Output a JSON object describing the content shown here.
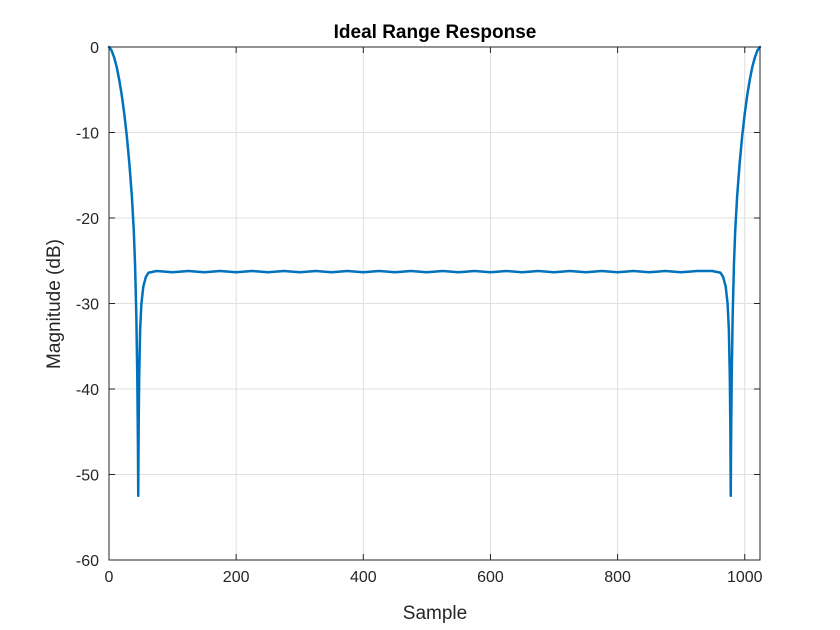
{
  "chart_data": {
    "type": "line",
    "title": "Ideal Range Response",
    "xlabel": "Sample",
    "ylabel": "Magnitude (dB)",
    "xlim": [
      0,
      1024
    ],
    "ylim": [
      -60,
      0
    ],
    "xticks": [
      0,
      200,
      400,
      600,
      800,
      1000
    ],
    "yticks": [
      0,
      -10,
      -20,
      -30,
      -40,
      -50,
      -60
    ],
    "grid": true,
    "series": [
      {
        "color": "#0072bd",
        "points": [
          [
            0,
            0
          ],
          [
            4,
            -0.4
          ],
          [
            8,
            -1.2
          ],
          [
            12,
            -2.3
          ],
          [
            16,
            -3.8
          ],
          [
            20,
            -5.6
          ],
          [
            24,
            -7.8
          ],
          [
            28,
            -10.4
          ],
          [
            32,
            -13.6
          ],
          [
            36,
            -17.5
          ],
          [
            39,
            -21.5
          ],
          [
            41,
            -25.5
          ],
          [
            43,
            -31.5
          ],
          [
            44.5,
            -38.5
          ],
          [
            45.5,
            -46.5
          ],
          [
            46,
            -52.5
          ],
          [
            46.7,
            -44
          ],
          [
            47.5,
            -38.5
          ],
          [
            49,
            -33
          ],
          [
            51,
            -30
          ],
          [
            54,
            -28
          ],
          [
            58,
            -26.9
          ],
          [
            62,
            -26.4
          ],
          [
            75,
            -26.2
          ],
          [
            100,
            -26.35
          ],
          [
            125,
            -26.2
          ],
          [
            150,
            -26.35
          ],
          [
            175,
            -26.2
          ],
          [
            200,
            -26.35
          ],
          [
            225,
            -26.2
          ],
          [
            250,
            -26.35
          ],
          [
            275,
            -26.2
          ],
          [
            300,
            -26.35
          ],
          [
            325,
            -26.2
          ],
          [
            350,
            -26.35
          ],
          [
            375,
            -26.2
          ],
          [
            400,
            -26.35
          ],
          [
            425,
            -26.2
          ],
          [
            450,
            -26.35
          ],
          [
            475,
            -26.2
          ],
          [
            500,
            -26.35
          ],
          [
            525,
            -26.2
          ],
          [
            550,
            -26.35
          ],
          [
            575,
            -26.2
          ],
          [
            600,
            -26.35
          ],
          [
            625,
            -26.2
          ],
          [
            650,
            -26.35
          ],
          [
            675,
            -26.2
          ],
          [
            700,
            -26.35
          ],
          [
            725,
            -26.2
          ],
          [
            750,
            -26.35
          ],
          [
            775,
            -26.2
          ],
          [
            800,
            -26.35
          ],
          [
            825,
            -26.2
          ],
          [
            850,
            -26.35
          ],
          [
            875,
            -26.2
          ],
          [
            900,
            -26.35
          ],
          [
            925,
            -26.2
          ],
          [
            949,
            -26.2
          ],
          [
            962,
            -26.4
          ],
          [
            966,
            -26.9
          ],
          [
            970,
            -28
          ],
          [
            973,
            -30
          ],
          [
            975,
            -33
          ],
          [
            976.5,
            -38.5
          ],
          [
            977.3,
            -44
          ],
          [
            978,
            -52.5
          ],
          [
            978.5,
            -46.5
          ],
          [
            979.5,
            -38.5
          ],
          [
            981,
            -31.5
          ],
          [
            983,
            -25.5
          ],
          [
            985,
            -21.5
          ],
          [
            988,
            -17.5
          ],
          [
            992,
            -13.6
          ],
          [
            996,
            -10.4
          ],
          [
            1000,
            -7.8
          ],
          [
            1004,
            -5.6
          ],
          [
            1008,
            -3.8
          ],
          [
            1012,
            -2.3
          ],
          [
            1016,
            -1.2
          ],
          [
            1020,
            -0.4
          ],
          [
            1024,
            0
          ]
        ]
      }
    ]
  }
}
